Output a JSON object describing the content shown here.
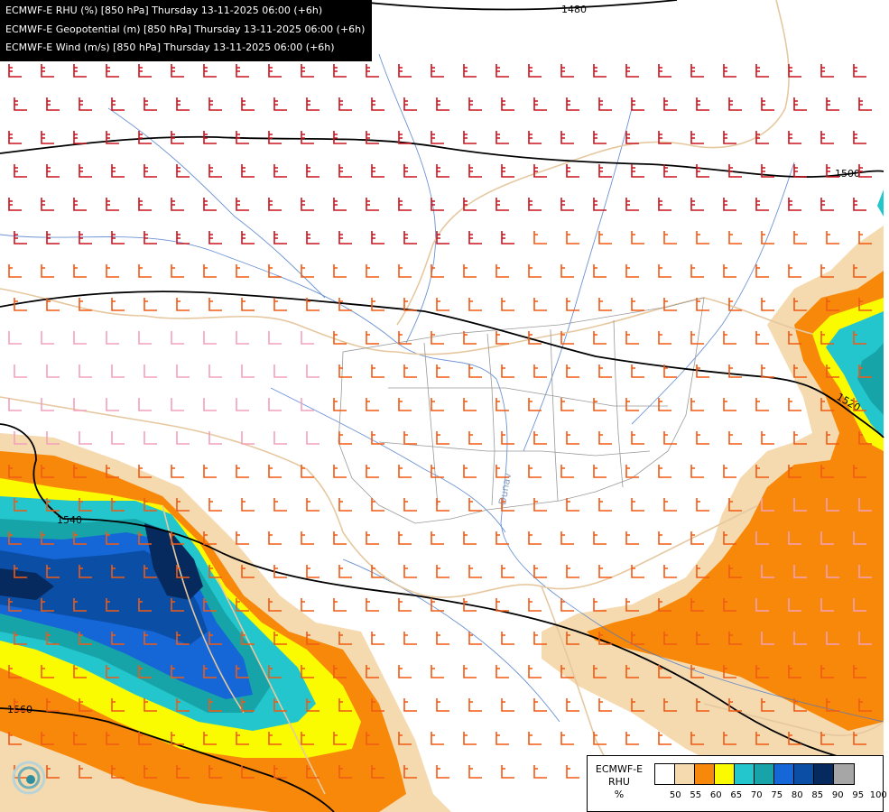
{
  "header": {
    "lines": [
      "ECMWF-E RHU (%) [850 hPa] Thursday 13-11-2025 06:00 (+6h)",
      "ECMWF-E Geopotential (m) [850 hPa] Thursday 13-11-2025 06:00 (+6h)",
      "ECMWF-E Wind (m/s) [850 hPa] Thursday 13-11-2025 06:00 (+6h)"
    ]
  },
  "contour_labels": [
    "1480",
    "1500",
    "1520",
    "1540",
    "1560"
  ],
  "river_label": "Dunav",
  "legend": {
    "title_lines": [
      "ECMWF-E",
      "RHU",
      "%"
    ],
    "ticks": [
      "50",
      "55",
      "60",
      "65",
      "70",
      "75",
      "80",
      "85",
      "90",
      "95",
      "100"
    ],
    "colors": [
      "#ffffff",
      "#f5dab0",
      "#f7880a",
      "#fafa00",
      "#22c6cc",
      "#17a4a8",
      "#1566d6",
      "#0a4ea6",
      "#072a5e",
      "#a6a6a6",
      "#5a5a5a"
    ]
  },
  "colors": {
    "humidity_fill_light": "#f5dab0",
    "humidity_fill_orange": "#f7880a",
    "humidity_fill_yellow": "#fafa00",
    "humidity_fill_cyan": "#22c6cc",
    "humidity_fill_teal": "#17a4a8",
    "humidity_fill_blue": "#1566d6",
    "humidity_fill_darkblue": "#0a4ea6",
    "humidity_fill_navy": "#072a5e",
    "wind_strong": "#c8141e",
    "wind_moderate": "#f05a14",
    "wind_light": "#f4a0bc",
    "river": "#4878c8",
    "border": "#e6c8a0",
    "region_border": "#999999",
    "geopotential_contour": "#000000"
  },
  "logo_icon": "ecmwf-swirl-logo"
}
